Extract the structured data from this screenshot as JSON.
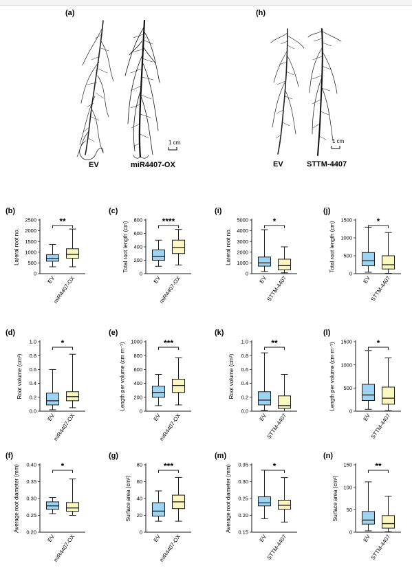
{
  "photos": [
    {
      "letter": "(a)",
      "labels": [
        "EV",
        "miR4407-OX"
      ],
      "scale": "1 cm"
    },
    {
      "letter": "(h)",
      "labels": [
        "EV",
        "STTM-4407"
      ],
      "scale": "1 cm"
    }
  ],
  "colors": {
    "ev_fill": "#9fd3f2",
    "treat_fill": "#fbf7c0",
    "stroke": "#1a1a1a"
  },
  "chart_data": [
    {
      "type": "box",
      "letter": "(b)",
      "ylabel": "Lateral root no.",
      "categories": [
        "EV",
        "miR4407-OX"
      ],
      "ylim": [
        0,
        2500
      ],
      "yticks": [
        0,
        500,
        1000,
        1500,
        2000,
        2500
      ],
      "ticklabels": [
        "0",
        "500",
        "1000",
        "1500",
        "2000",
        "2500"
      ],
      "boxes": [
        {
          "min": 320,
          "q1": 580,
          "median": 710,
          "q3": 880,
          "max": 1360
        },
        {
          "min": 320,
          "q1": 720,
          "median": 900,
          "q3": 1160,
          "max": 2080
        }
      ],
      "significance": "**"
    },
    {
      "type": "box",
      "letter": "(c)",
      "ylabel": "Total root length (cm)",
      "categories": [
        "EV",
        "miR4407-OX"
      ],
      "ylim": [
        0,
        800
      ],
      "yticks": [
        0,
        200,
        400,
        600,
        800
      ],
      "ticklabels": [
        "0",
        "200",
        "400",
        "600",
        "800"
      ],
      "boxes": [
        {
          "min": 110,
          "q1": 200,
          "median": 255,
          "q3": 355,
          "max": 500
        },
        {
          "min": 130,
          "q1": 300,
          "median": 390,
          "q3": 500,
          "max": 660
        }
      ],
      "significance": "****"
    },
    {
      "type": "box",
      "letter": "(i)",
      "ylabel": "Lateral root no.",
      "categories": [
        "EV",
        "STTM-4407"
      ],
      "ylim": [
        0,
        5000
      ],
      "yticks": [
        0,
        1000,
        2000,
        3000,
        4000,
        5000
      ],
      "ticklabels": [
        "0",
        "1000",
        "2000",
        "3000",
        "4000",
        "5000"
      ],
      "boxes": [
        {
          "min": 200,
          "q1": 700,
          "median": 1000,
          "q3": 1550,
          "max": 4100
        },
        {
          "min": 80,
          "q1": 350,
          "median": 750,
          "q3": 1350,
          "max": 2500
        }
      ],
      "significance": "*"
    },
    {
      "type": "box",
      "letter": "(j)",
      "ylabel": "Total root length (cm)",
      "categories": [
        "EV",
        "STTM-4407"
      ],
      "ylim": [
        0,
        1500
      ],
      "yticks": [
        0,
        500,
        1000,
        1500
      ],
      "ticklabels": [
        "0",
        "500",
        "1000",
        "1500"
      ],
      "boxes": [
        {
          "min": 40,
          "q1": 220,
          "median": 360,
          "q3": 590,
          "max": 1300
        },
        {
          "min": 10,
          "q1": 130,
          "median": 250,
          "q3": 500,
          "max": 1150
        }
      ],
      "significance": "*"
    },
    {
      "type": "box",
      "letter": "(d)",
      "ylabel": "Root volume (cm³)",
      "categories": [
        "EV",
        "miR4407-OX"
      ],
      "ylim": [
        0,
        1.0
      ],
      "yticks": [
        0,
        0.2,
        0.4,
        0.6,
        0.8,
        1.0
      ],
      "ticklabels": [
        "0.0",
        "0.2",
        "0.4",
        "0.6",
        "0.8",
        "1.0"
      ],
      "boxes": [
        {
          "min": 0.02,
          "q1": 0.09,
          "median": 0.15,
          "q3": 0.26,
          "max": 0.6
        },
        {
          "min": 0.05,
          "q1": 0.15,
          "median": 0.21,
          "q3": 0.28,
          "max": 0.82
        }
      ],
      "significance": "*"
    },
    {
      "type": "box",
      "letter": "(e)",
      "ylabel": "Length per volume (cm m⁻³)",
      "categories": [
        "EV",
        "miR4407-OX"
      ],
      "ylim": [
        0,
        1000
      ],
      "yticks": [
        0,
        200,
        400,
        600,
        800,
        1000
      ],
      "ticklabels": [
        "0",
        "200",
        "400",
        "600",
        "800",
        "1000"
      ],
      "boxes": [
        {
          "min": 80,
          "q1": 200,
          "median": 270,
          "q3": 360,
          "max": 530
        },
        {
          "min": 90,
          "q1": 270,
          "median": 370,
          "q3": 460,
          "max": 770
        }
      ],
      "significance": "***"
    },
    {
      "type": "box",
      "letter": "(k)",
      "ylabel": "Root volume (cm³)",
      "categories": [
        "EV",
        "STTM-4407"
      ],
      "ylim": [
        0,
        1.0
      ],
      "yticks": [
        0,
        0.2,
        0.4,
        0.6,
        0.8,
        1.0
      ],
      "ticklabels": [
        "0.0",
        "0.2",
        "0.4",
        "0.6",
        "0.8",
        "1.0"
      ],
      "boxes": [
        {
          "min": 0.01,
          "q1": 0.09,
          "median": 0.16,
          "q3": 0.28,
          "max": 0.84
        },
        {
          "min": 0.0,
          "q1": 0.04,
          "median": 0.08,
          "q3": 0.22,
          "max": 0.53
        }
      ],
      "significance": "**"
    },
    {
      "type": "box",
      "letter": "(l)",
      "ylabel": "Length per volume (cm m⁻³)",
      "categories": [
        "EV",
        "STTM-4407"
      ],
      "ylim": [
        0,
        1500
      ],
      "yticks": [
        0,
        500,
        1000,
        1500
      ],
      "ticklabels": [
        "0",
        "500",
        "1000",
        "1500"
      ],
      "boxes": [
        {
          "min": 40,
          "q1": 230,
          "median": 350,
          "q3": 580,
          "max": 1310
        },
        {
          "min": 10,
          "q1": 150,
          "median": 280,
          "q3": 520,
          "max": 1150
        }
      ],
      "significance": "*"
    },
    {
      "type": "box",
      "letter": "(f)",
      "ylabel": "Average root diameter (mm)",
      "categories": [
        "EV",
        "miR4407-OX"
      ],
      "ylim": [
        0.2,
        0.4
      ],
      "yticks": [
        0.2,
        0.25,
        0.3,
        0.35,
        0.4
      ],
      "ticklabels": [
        "0.20",
        "0.25",
        "0.30",
        "0.35",
        "0.40"
      ],
      "boxes": [
        {
          "min": 0.255,
          "q1": 0.268,
          "median": 0.278,
          "q3": 0.29,
          "max": 0.303
        },
        {
          "min": 0.25,
          "q1": 0.262,
          "median": 0.272,
          "q3": 0.288,
          "max": 0.358
        }
      ],
      "significance": "*"
    },
    {
      "type": "box",
      "letter": "(g)",
      "ylabel": "Surface area (cm²)",
      "categories": [
        "EV",
        "miR4407-OX"
      ],
      "ylim": [
        0,
        80
      ],
      "yticks": [
        0,
        20,
        40,
        60,
        80
      ],
      "ticklabels": [
        "0",
        "20",
        "40",
        "60",
        "80"
      ],
      "boxes": [
        {
          "min": 13,
          "q1": 19,
          "median": 25,
          "q3": 35,
          "max": 49
        },
        {
          "min": 13,
          "q1": 28,
          "median": 36,
          "q3": 44,
          "max": 65
        }
      ],
      "significance": "***"
    },
    {
      "type": "box",
      "letter": "(m)",
      "ylabel": "Average root diameter (mm)",
      "categories": [
        "EV",
        "STTM-4407"
      ],
      "ylim": [
        0.15,
        0.35
      ],
      "yticks": [
        0.15,
        0.2,
        0.25,
        0.3,
        0.35
      ],
      "ticklabels": [
        "0.15",
        "0.20",
        "0.25",
        "0.30",
        "0.35"
      ],
      "boxes": [
        {
          "min": 0.19,
          "q1": 0.228,
          "median": 0.237,
          "q3": 0.255,
          "max": 0.334
        },
        {
          "min": 0.18,
          "q1": 0.218,
          "median": 0.23,
          "q3": 0.245,
          "max": 0.312
        }
      ],
      "significance": "*"
    },
    {
      "type": "box",
      "letter": "(n)",
      "ylabel": "Surface area (cm²)",
      "categories": [
        "EV",
        "STTM-4407"
      ],
      "ylim": [
        0,
        150
      ],
      "yticks": [
        0,
        50,
        100,
        150
      ],
      "ticklabels": [
        "0",
        "50",
        "100",
        "150"
      ],
      "boxes": [
        {
          "min": 3,
          "q1": 18,
          "median": 27,
          "q3": 46,
          "max": 112
        },
        {
          "min": 1,
          "q1": 9,
          "median": 19,
          "q3": 37,
          "max": 80
        }
      ],
      "significance": "**"
    }
  ]
}
